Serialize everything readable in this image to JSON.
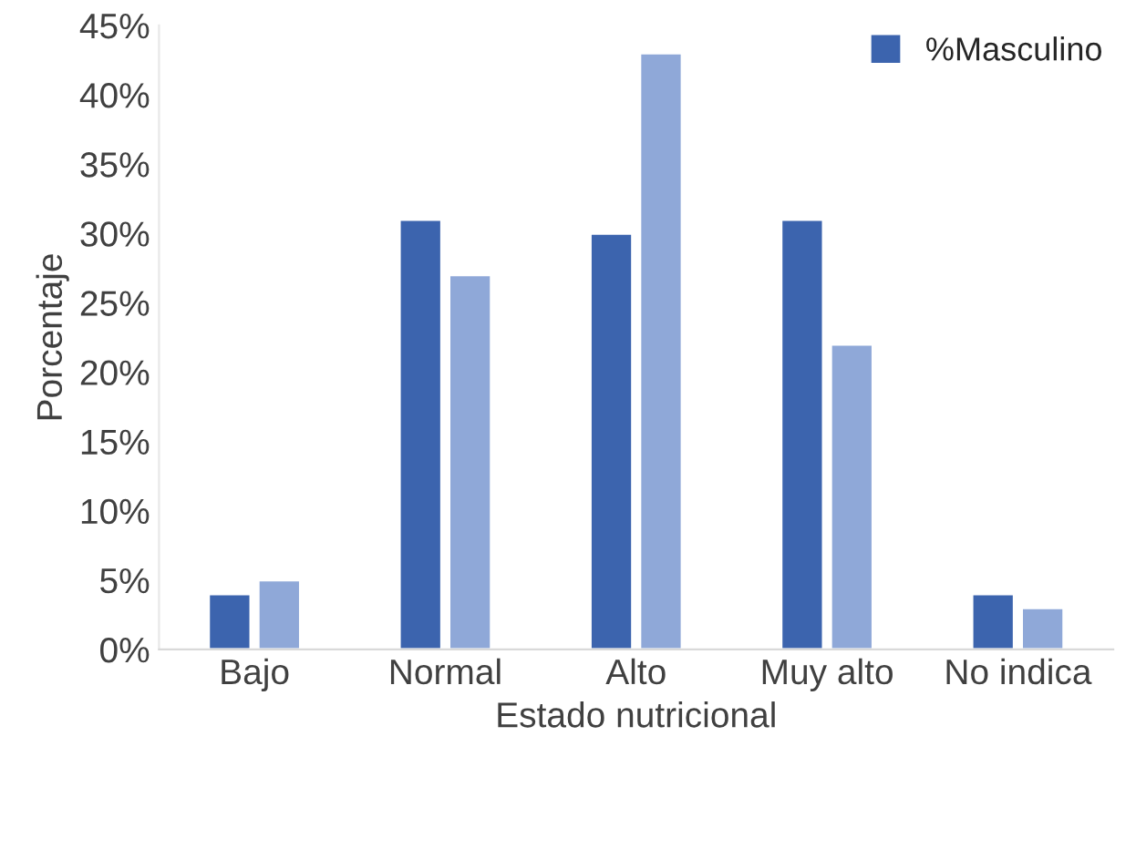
{
  "chart_data": {
    "type": "bar",
    "xlabel": "Estado nutricional",
    "ylabel": "Porcentaje",
    "categories": [
      "Bajo",
      "Normal",
      "Alto",
      "Muy alto",
      "No indica"
    ],
    "series": [
      {
        "name": "%Masculino",
        "color": "#3c64ae",
        "values": [
          4,
          31,
          30,
          31,
          4
        ]
      },
      {
        "color": "#8fa8d8",
        "values": [
          5,
          27,
          43,
          22,
          3
        ]
      }
    ],
    "ylim": [
      0,
      45
    ],
    "yticks": [
      {
        "value": 0,
        "label": "0%"
      },
      {
        "value": 5,
        "label": "5%"
      },
      {
        "value": 10,
        "label": "10%"
      },
      {
        "value": 15,
        "label": "15%"
      },
      {
        "value": 20,
        "label": "20%"
      },
      {
        "value": 25,
        "label": "25%"
      },
      {
        "value": 30,
        "label": "30%"
      },
      {
        "value": 35,
        "label": "35%"
      },
      {
        "value": 40,
        "label": "40%"
      },
      {
        "value": 45,
        "label": "45%"
      }
    ],
    "grid": false,
    "legend": "top right"
  }
}
